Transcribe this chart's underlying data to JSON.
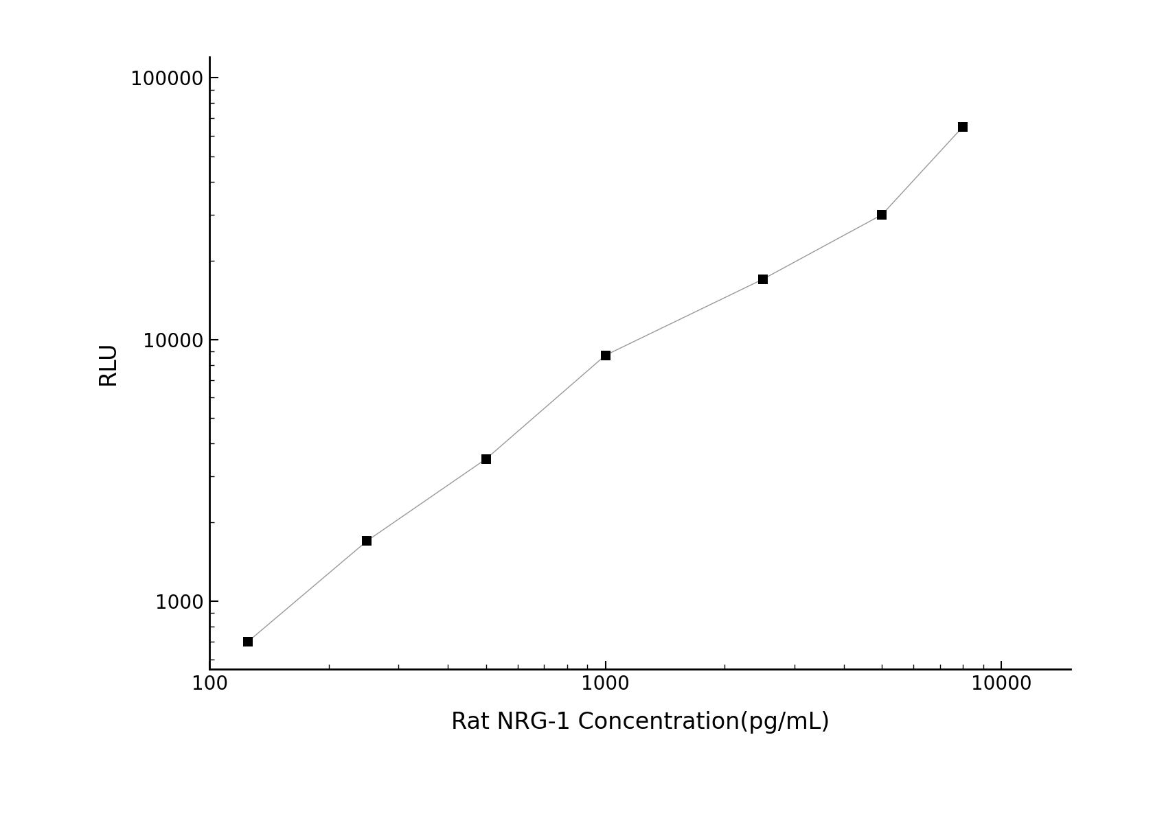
{
  "x_values": [
    125,
    250,
    500,
    1000,
    2500,
    5000,
    8000
  ],
  "y_values": [
    700,
    1700,
    3500,
    8700,
    17000,
    30000,
    65000
  ],
  "line_color": "#999999",
  "marker_color": "#000000",
  "marker_style": "s",
  "marker_size": 10,
  "line_width": 1.0,
  "xlabel": "Rat NRG-1 Concentration(pg/mL)",
  "ylabel": "RLU",
  "xlim": [
    100,
    15000
  ],
  "ylim": [
    550,
    120000
  ],
  "xlabel_fontsize": 24,
  "ylabel_fontsize": 24,
  "tick_fontsize": 20,
  "background_color": "#ffffff",
  "x_ticks": [
    100,
    1000,
    10000
  ],
  "y_ticks": [
    1000,
    10000,
    100000
  ]
}
